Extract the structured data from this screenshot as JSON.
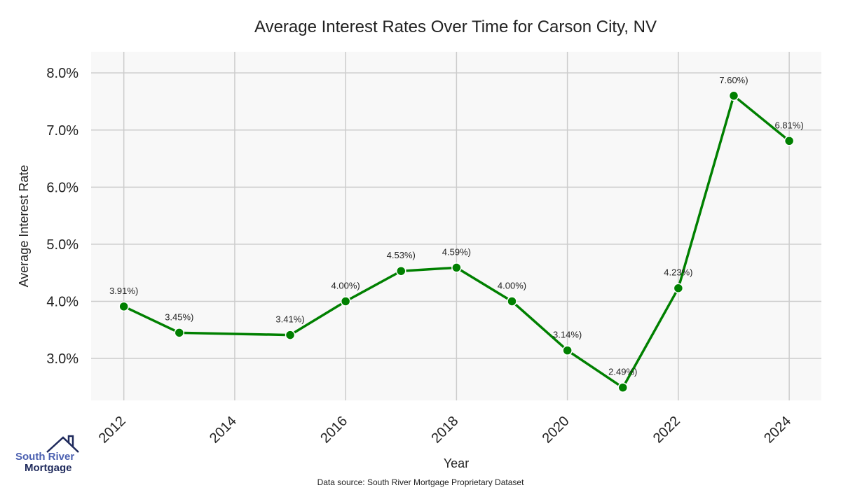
{
  "chart_data": {
    "type": "line",
    "title": "Average Interest Rates Over Time for Carson City, NV",
    "xlabel": "Year",
    "ylabel": "Average Interest Rate",
    "x": [
      2012,
      2013,
      2015,
      2016,
      2017,
      2018,
      2019,
      2020,
      2021,
      2022,
      2023,
      2024
    ],
    "series": [
      {
        "name": "Average Interest Rate",
        "color": "#008000",
        "values": [
          3.91,
          3.45,
          3.41,
          4.0,
          4.53,
          4.59,
          4.0,
          3.14,
          2.49,
          4.23,
          7.6,
          6.81
        ],
        "labels": [
          "3.91%)",
          "3.45%)",
          "3.41%)",
          "4.00%)",
          "4.53%)",
          "4.59%)",
          "4.00%)",
          "3.14%)",
          "2.49%)",
          "4.23%)",
          "7.60%)",
          "6.81%)"
        ]
      }
    ],
    "xticks": [
      2012,
      2014,
      2016,
      2018,
      2020,
      2022,
      2024
    ],
    "yticks": [
      3,
      4,
      5,
      6,
      7,
      8
    ],
    "ytick_labels": [
      "3.0%",
      "4.0%",
      "5.0%",
      "6.0%",
      "7.0%",
      "8.0%"
    ],
    "xlim": [
      2011.41,
      2024.58
    ],
    "ylim": [
      2.265,
      8.37
    ],
    "grid": true,
    "background": "#f8f8f8"
  },
  "footer": {
    "source": "Data source: South River Mortgage Proprietary Dataset"
  },
  "logo": {
    "line1": "South River",
    "line2": "Mortgage"
  }
}
